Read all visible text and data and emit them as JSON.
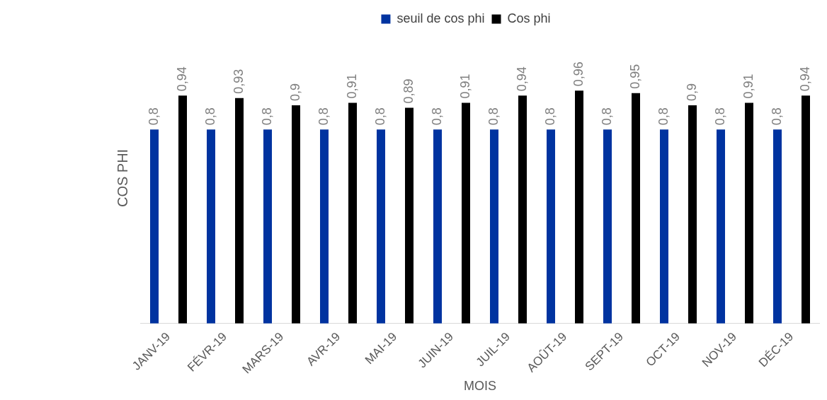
{
  "chart_data": {
    "type": "bar",
    "xlabel": "MOIS",
    "ylabel": "COS PHI",
    "categories": [
      "JANV-19",
      "FÉVR-19",
      "MARS-19",
      "AVR-19",
      "MAI-19",
      "JUIN-19",
      "JUIL-19",
      "AOÛT-19",
      "SEPT-19",
      "OCT-19",
      "NOV-19",
      "DÉC-19"
    ],
    "series": [
      {
        "name": "seuil de cos phi",
        "color": "#0033a0",
        "values": [
          0.8,
          0.8,
          0.8,
          0.8,
          0.8,
          0.8,
          0.8,
          0.8,
          0.8,
          0.8,
          0.8,
          0.8
        ],
        "value_labels": [
          "0,8",
          "0,8",
          "0,8",
          "0,8",
          "0,8",
          "0,8",
          "0,8",
          "0,8",
          "0,8",
          "0,8",
          "0,8",
          "0,8"
        ]
      },
      {
        "name": "Cos phi",
        "color": "#000000",
        "values": [
          0.94,
          0.93,
          0.9,
          0.91,
          0.89,
          0.91,
          0.94,
          0.96,
          0.95,
          0.9,
          0.91,
          0.94
        ],
        "value_labels": [
          "0,94",
          "0,93",
          "0,9",
          "0,91",
          "0,89",
          "0,91",
          "0,94",
          "0,96",
          "0,95",
          "0,9",
          "0,91",
          "0,94"
        ]
      }
    ],
    "tick_labels": "x",
    "grid": false,
    "legend": "top"
  }
}
